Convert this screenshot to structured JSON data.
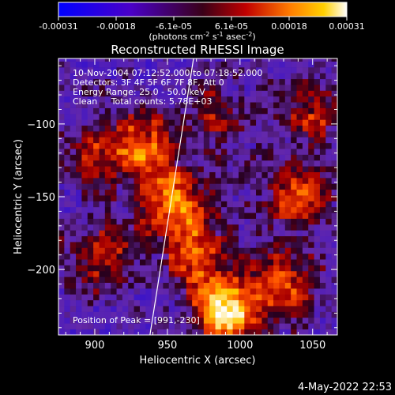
{
  "chart_data": {
    "type": "heatmap",
    "colorbar": {
      "tick_labels": [
        "-0.00031",
        "-0.00018",
        "-6.1e-05",
        "6.1e-05",
        "0.00018",
        "0.00031"
      ],
      "range": [
        -0.00031,
        0.00031
      ],
      "units_html": "(photons cm<tspan dy='-4' font-size='8'>-2</tspan><tspan dy='4'> s</tspan><tspan dy='-4' font-size='8'>-1</tspan><tspan dy='4'> asec</tspan><tspan dy='-4' font-size='8'>-2</tspan><tspan dy='4'>)</tspan>"
    },
    "units_text": "(photons cm-2 s-1 asec-2)",
    "title": "Reconstructed RHESSI Image",
    "xlabel": "Heliocentric X (arcsec)",
    "ylabel": "Heliocentric Y (arcsec)",
    "xlim": [
      875,
      1067
    ],
    "ylim": [
      -245,
      -55
    ],
    "xticks": [
      900,
      950,
      1000,
      1050
    ],
    "yticks": [
      -100,
      -150,
      -200
    ],
    "annotations": [
      "10-Nov-2004 07:12:52.000 to 07:18:52.000",
      "Detectors: 3F 4F 5F 6F 7F 8F, Att 0",
      "Energy Range: 25.0 - 50.0 keV",
      "Clean     Total counts: 5.78E+03"
    ],
    "peak_label": "Position of Peak = [991,-230]",
    "peak": [
      991,
      -230
    ],
    "limb_line": [
      [
        938,
        -245
      ],
      [
        968,
        -55
      ]
    ],
    "sources": [
      {
        "x": 991,
        "y": -230,
        "amp": 1.0
      },
      {
        "x": 955,
        "y": -155,
        "amp": 0.75
      },
      {
        "x": 935,
        "y": -115,
        "amp": 0.6
      },
      {
        "x": 1040,
        "y": -150,
        "amp": 0.55
      },
      {
        "x": 1030,
        "y": -210,
        "amp": 0.55
      },
      {
        "x": 905,
        "y": -190,
        "amp": 0.5
      },
      {
        "x": 1050,
        "y": -90,
        "amp": 0.45
      },
      {
        "x": 900,
        "y": -120,
        "amp": 0.4
      },
      {
        "x": 985,
        "y": -95,
        "amp": 0.35
      },
      {
        "x": 970,
        "y": -190,
        "amp": 0.6
      }
    ]
  },
  "footer": {
    "timestamp": "4-May-2022 22:53"
  }
}
